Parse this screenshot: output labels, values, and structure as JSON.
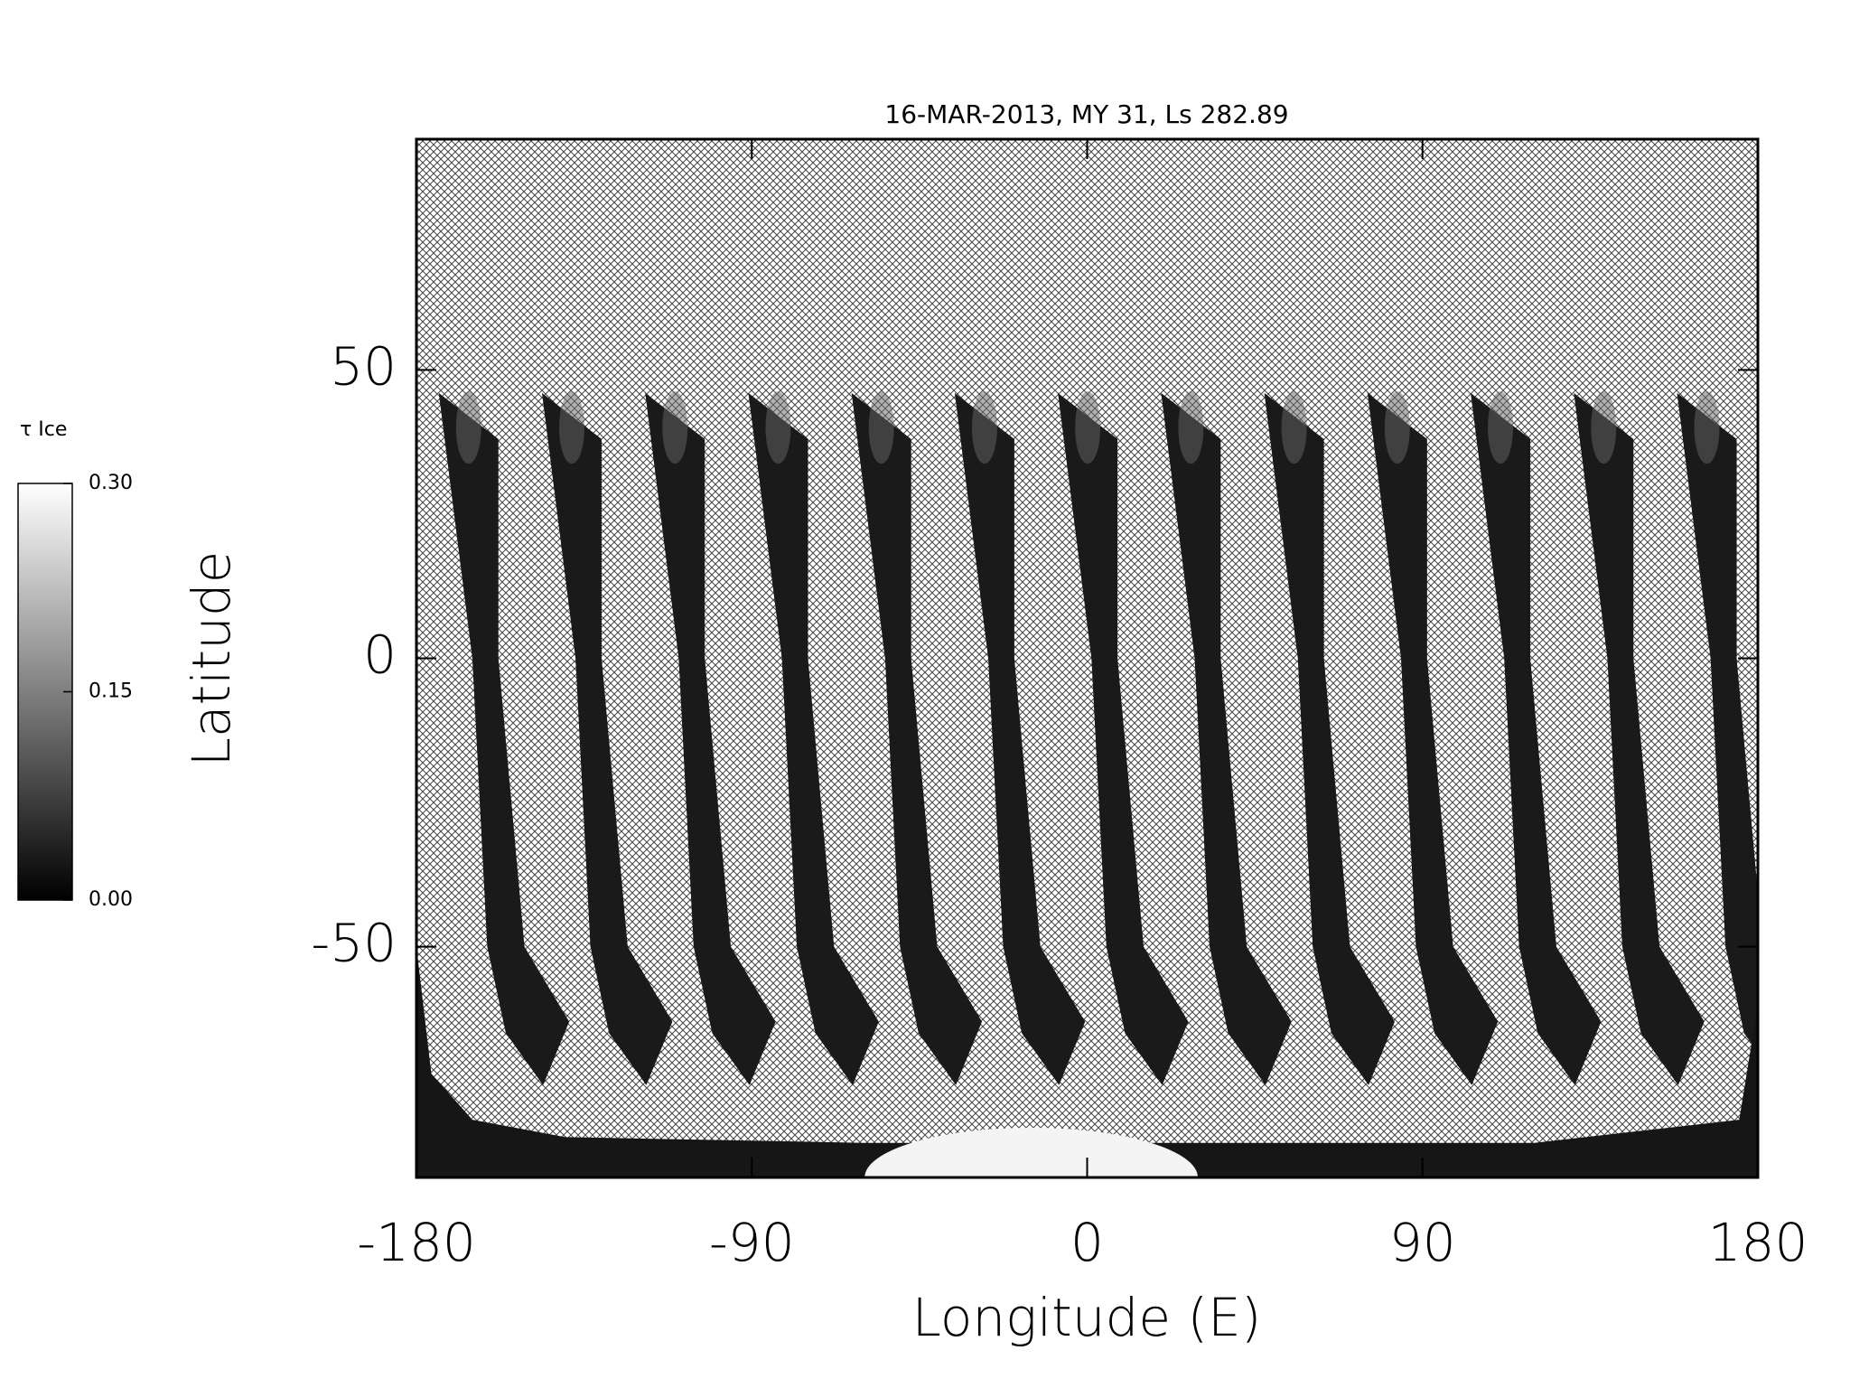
{
  "chart_data": {
    "type": "map",
    "title": "16-MAR-2013, MY 31,  Ls 282.89",
    "x_label": "Longitude (E)",
    "y_label": "Latitude",
    "xlim": [
      -180,
      180
    ],
    "xticks": [
      -180,
      -90,
      0,
      90,
      180
    ],
    "ylim": [
      -90,
      90
    ],
    "yticks": [
      -50,
      0,
      50
    ],
    "colorbar": {
      "label": "τ Ice",
      "lim": [
        0,
        0.3
      ],
      "ticks": [
        {
          "value": 0,
          "label": "0.00"
        },
        {
          "value": 0.15,
          "label": "0.15"
        },
        {
          "value": 0.3,
          "label": "0.30"
        }
      ]
    }
  }
}
